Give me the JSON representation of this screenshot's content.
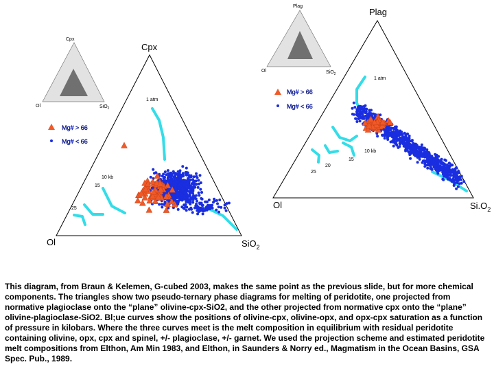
{
  "left": {
    "inset": {
      "top": "Cpx",
      "left": "Ol",
      "right": {
        "base": "SiO",
        "sub": "2"
      }
    },
    "apex": "Cpx",
    "corner_left": "Ol",
    "corner_right": {
      "base": "SiO",
      "sub": "2"
    },
    "curve_label": "1 atm",
    "pressures": [
      "10 kb",
      "15",
      "25"
    ],
    "legend": [
      "Mg# > 66",
      "Mg# < 66"
    ]
  },
  "right": {
    "inset": {
      "top": "Plag",
      "left": "Ol",
      "right": {
        "base": "SiO",
        "sub": "2"
      }
    },
    "apex": "Plag",
    "corner_left": "Ol",
    "corner_right": {
      "base": "Si.O",
      "sub": "2"
    },
    "curve_label": "1 atm",
    "pressures": [
      "10 kb",
      "15",
      "20",
      "25"
    ],
    "legend": [
      "Mg# > 66",
      "Mg# < 66"
    ]
  },
  "caption": "This diagram, from Braun & Kelemen, G-cubed 2003, makes the same point as the previous slide, but for more chemical components.  The triangles show two pseudo-ternary phase diagrams for melting of peridotite, one projected from normative plagioclase onto the “plane” olivine-cpx-SiO2, and the other projected from normative cpx onto the “plane” olivine-plagioclase-SiO2.  Bl;ue curves show the positions of olivine-cpx, olivine-opx, and opx-cpx saturation as a function of pressure in kilobars.  Where the three curves meet is the melt composition in equilibrium with residual peridotite containing olivine, opx, cpx and spinel, +/- plagioclase, +/- garnet.  We used the projection scheme and estimated peridotite melt compositions from Elthon, Am Min 1983, and Elthon, in Saunders & Norry ed., Magmatism in the Ocean Basins, GSA Spec. Pub., 1989."
}
